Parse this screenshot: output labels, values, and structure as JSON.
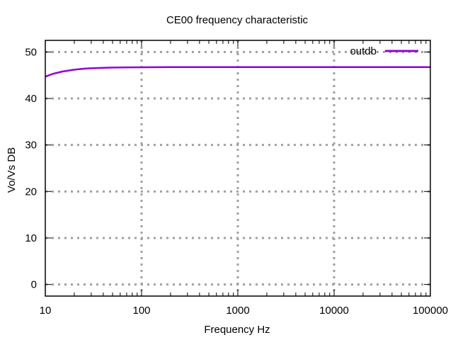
{
  "chart_data": {
    "type": "line",
    "title": "CE00 frequency characteristic",
    "xlabel": "Frequency Hz",
    "ylabel": "Vo/Vs DB",
    "x_scale": "log",
    "xlim": [
      10,
      100000
    ],
    "ylim": [
      -2.5,
      52.5
    ],
    "x_ticks": [
      10,
      100,
      1000,
      10000,
      100000
    ],
    "x_tick_labels": [
      "10",
      "100",
      "1000",
      "10000",
      "100000"
    ],
    "y_ticks": [
      0,
      10,
      20,
      30,
      40,
      50
    ],
    "y_tick_labels": [
      "0",
      "10",
      "20",
      "30",
      "40",
      "50"
    ],
    "grid": true,
    "legend_position": "top-right",
    "series": [
      {
        "name": "outdb",
        "color": "#9400d3",
        "x": [
          10,
          12,
          15,
          20,
          25,
          30,
          40,
          50,
          70,
          100,
          200,
          500,
          1000,
          10000,
          100000
        ],
        "y": [
          44.7,
          45.3,
          45.8,
          46.2,
          46.4,
          46.5,
          46.6,
          46.65,
          46.7,
          46.72,
          46.74,
          46.75,
          46.75,
          46.75,
          46.75
        ]
      }
    ]
  }
}
